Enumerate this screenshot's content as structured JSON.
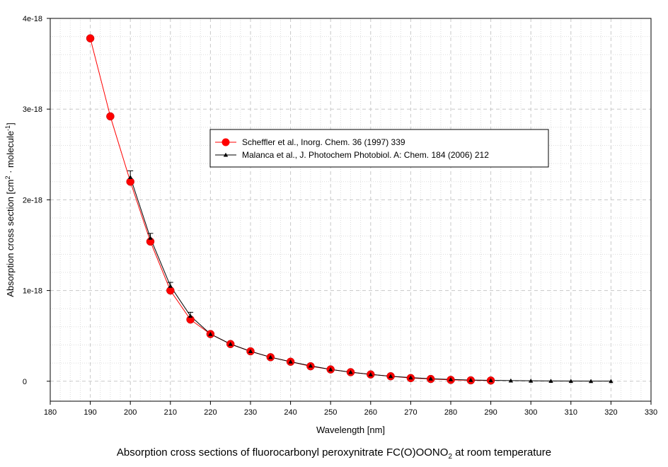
{
  "chart_data": {
    "type": "line",
    "title": "",
    "xlabel": "Wavelength [nm]",
    "ylabel": {
      "text": "Absorption cross section [cm",
      "sup1": "2",
      "mid": " · molecule",
      "sup2": "-1",
      "end": "]"
    },
    "caption": {
      "text": "Absorption cross sections of fluorocarbonyl peroxynitrate FC(O)OONO",
      "sub": "2",
      "end": " at room temperature"
    },
    "xlim": [
      180,
      330
    ],
    "xticks": [
      180,
      190,
      200,
      210,
      220,
      230,
      240,
      250,
      260,
      270,
      280,
      290,
      300,
      310,
      320,
      330
    ],
    "ylim": [
      -2.2e-19,
      4e-18
    ],
    "yticks": [
      {
        "value": 0,
        "label": "0"
      },
      {
        "value": 1e-18,
        "label": "1e-18"
      },
      {
        "value": 2e-18,
        "label": "2e-18"
      },
      {
        "value": 3e-18,
        "label": "3e-18"
      },
      {
        "value": 4e-18,
        "label": "4e-18"
      }
    ],
    "grid": true,
    "legend_position": "upper-middle",
    "series": [
      {
        "name": "Scheffler et al., Inorg. Chem. 36 (1997) 339",
        "color": "#ff0000",
        "marker": "circle",
        "x": [
          190,
          195,
          200,
          205,
          210,
          215,
          220,
          225,
          230,
          235,
          240,
          245,
          250,
          255,
          260,
          265,
          270,
          275,
          280,
          285,
          290
        ],
        "y": [
          3.78e-18,
          2.92e-18,
          2.2e-18,
          1.54e-18,
          1e-18,
          6.8e-19,
          5.2e-19,
          4.1e-19,
          3.3e-19,
          2.65e-19,
          2.15e-19,
          1.65e-19,
          1.3e-19,
          1e-19,
          7.5e-20,
          5.5e-20,
          3.5e-20,
          2.5e-20,
          1.5e-20,
          1e-20,
          8e-21
        ]
      },
      {
        "name": "Malanca et al., J. Photochem Photobiol. A: Chem. 184 (2006) 212",
        "color": "#000000",
        "marker": "triangle",
        "x": [
          200,
          205,
          210,
          215,
          220,
          225,
          230,
          235,
          240,
          245,
          250,
          255,
          260,
          265,
          270,
          275,
          280,
          285,
          290,
          295,
          300,
          305,
          310,
          315,
          320
        ],
        "y": [
          2.25e-18,
          1.58e-18,
          1.05e-18,
          7.2e-19,
          5.2e-19,
          4.1e-19,
          3.3e-19,
          2.65e-19,
          2.15e-19,
          1.7e-19,
          1.3e-19,
          1e-19,
          7.5e-20,
          5.5e-20,
          4e-20,
          2.8e-20,
          2e-20,
          1.3e-20,
          1e-20,
          7e-21,
          5e-21,
          3e-21,
          2e-21,
          1e-21,
          1e-21
        ],
        "error": [
          7e-20,
          5e-20,
          4e-20,
          4e-20,
          2e-20,
          1.5e-20,
          1.2e-20,
          0,
          0,
          0,
          0,
          0,
          0,
          0,
          0,
          0,
          0,
          0,
          0,
          0,
          0,
          0,
          0,
          0,
          0
        ]
      }
    ]
  }
}
